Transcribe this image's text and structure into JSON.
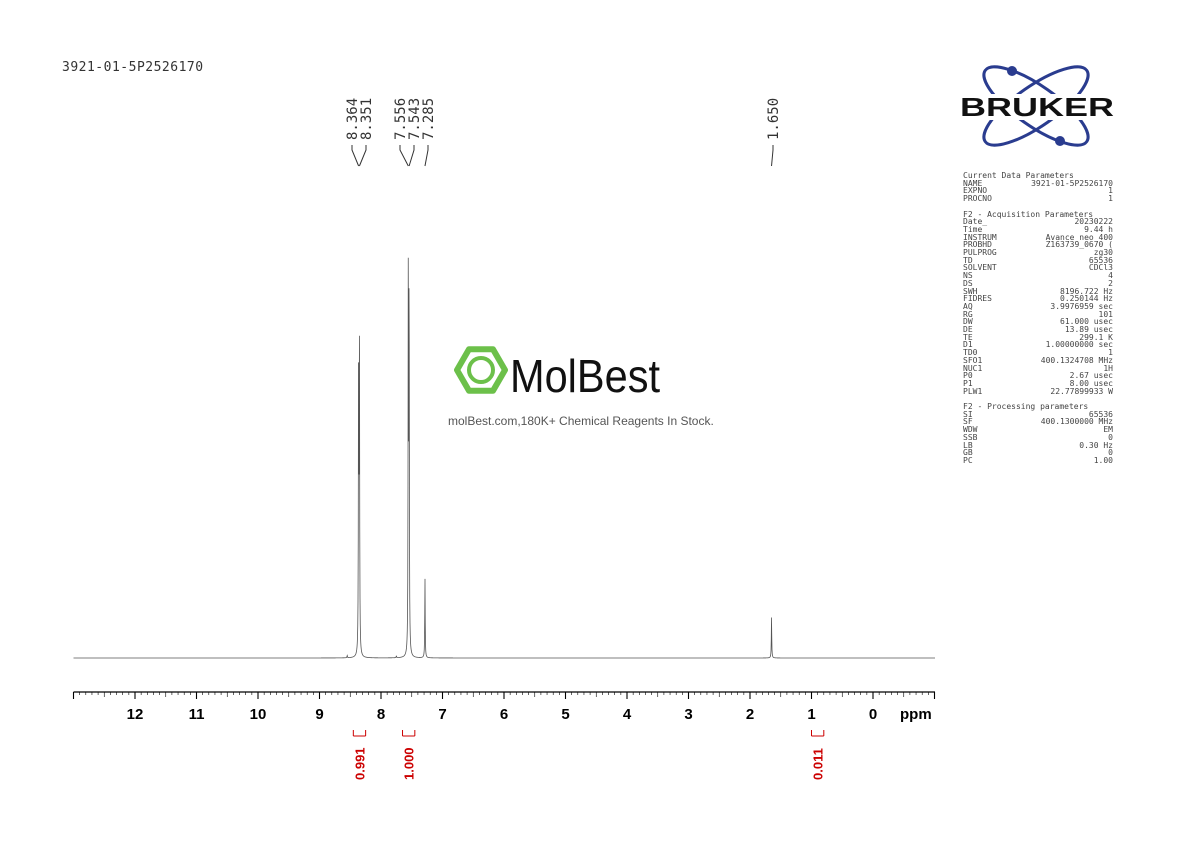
{
  "title": "3921-01-5P2526170",
  "watermark": {
    "brand": "MolBest",
    "tagline": "molBest.com,180K+ Chemical Reagents In Stock.",
    "color": "#6cc04a"
  },
  "logo": {
    "text": "BRUKER",
    "color": "#2a3c8f"
  },
  "params": {
    "sections": [
      {
        "heading": "Current Data Parameters",
        "rows": [
          [
            "NAME",
            "3921-01-5P2526170"
          ],
          [
            "EXPNO",
            "1"
          ],
          [
            "PROCNO",
            "1"
          ]
        ]
      },
      {
        "heading": "F2 - Acquisition Parameters",
        "rows": [
          [
            "Date_",
            "20230222"
          ],
          [
            "Time",
            "9.44 h"
          ],
          [
            "INSTRUM",
            "Avance neo 400"
          ],
          [
            "PROBHD",
            "Z163739_0670 ("
          ],
          [
            "PULPROG",
            "zg30"
          ],
          [
            "TD",
            "65536"
          ],
          [
            "SOLVENT",
            "CDCl3"
          ],
          [
            "NS",
            "4"
          ],
          [
            "DS",
            "2"
          ],
          [
            "SWH",
            "8196.722 Hz"
          ],
          [
            "FIDRES",
            "0.250144 Hz"
          ],
          [
            "AQ",
            "3.9976959 sec"
          ],
          [
            "RG",
            "101"
          ],
          [
            "DW",
            "61.000 usec"
          ],
          [
            "DE",
            "13.89 usec"
          ],
          [
            "TE",
            "299.1 K"
          ],
          [
            "D1",
            "1.00000000 sec"
          ],
          [
            "TD0",
            "1"
          ],
          [
            "SFO1",
            "400.1324708 MHz"
          ],
          [
            "NUC1",
            "1H"
          ],
          [
            "P0",
            "2.67 usec"
          ],
          [
            "P1",
            "8.00 usec"
          ],
          [
            "PLW1",
            "22.77899933 W"
          ]
        ]
      },
      {
        "heading": "F2 - Processing parameters",
        "rows": [
          [
            "SI",
            "65536"
          ],
          [
            "SF",
            "400.1300000 MHz"
          ],
          [
            "WDW",
            "EM"
          ],
          [
            "SSB",
            "0"
          ],
          [
            "LB",
            "0.30 Hz"
          ],
          [
            "GB",
            "0"
          ],
          [
            "PC",
            "1.00"
          ]
        ]
      }
    ]
  },
  "chart_data": {
    "type": "line",
    "xlabel": "ppm",
    "xlim": [
      13,
      -1
    ],
    "x_reversed": true,
    "xticks": [
      12,
      11,
      10,
      9,
      8,
      7,
      6,
      5,
      4,
      3,
      2,
      1,
      0
    ],
    "peaks": [
      {
        "ppm": 8.364,
        "intensity": 85
      },
      {
        "ppm": 8.351,
        "intensity": 86
      },
      {
        "ppm": 7.556,
        "intensity": 100
      },
      {
        "ppm": 7.543,
        "intensity": 99
      },
      {
        "ppm": 7.285,
        "intensity": 20.5
      },
      {
        "ppm": 1.65,
        "intensity": 10.5
      },
      {
        "ppm": 8.55,
        "intensity": 0.6
      },
      {
        "ppm": 7.75,
        "intensity": 0.5
      }
    ],
    "peak_labels": [
      "8.364",
      "8.351",
      "7.556",
      "7.543",
      "7.285",
      "1.650"
    ],
    "integrals": [
      {
        "label": "0.991",
        "from": 8.45,
        "to": 8.25
      },
      {
        "label": "1.000",
        "from": 7.65,
        "to": 7.45
      },
      {
        "label": "0.011",
        "from": 1.0,
        "to": 0.8
      }
    ],
    "integral_color": "#cc0000",
    "line_color": "#555555"
  }
}
